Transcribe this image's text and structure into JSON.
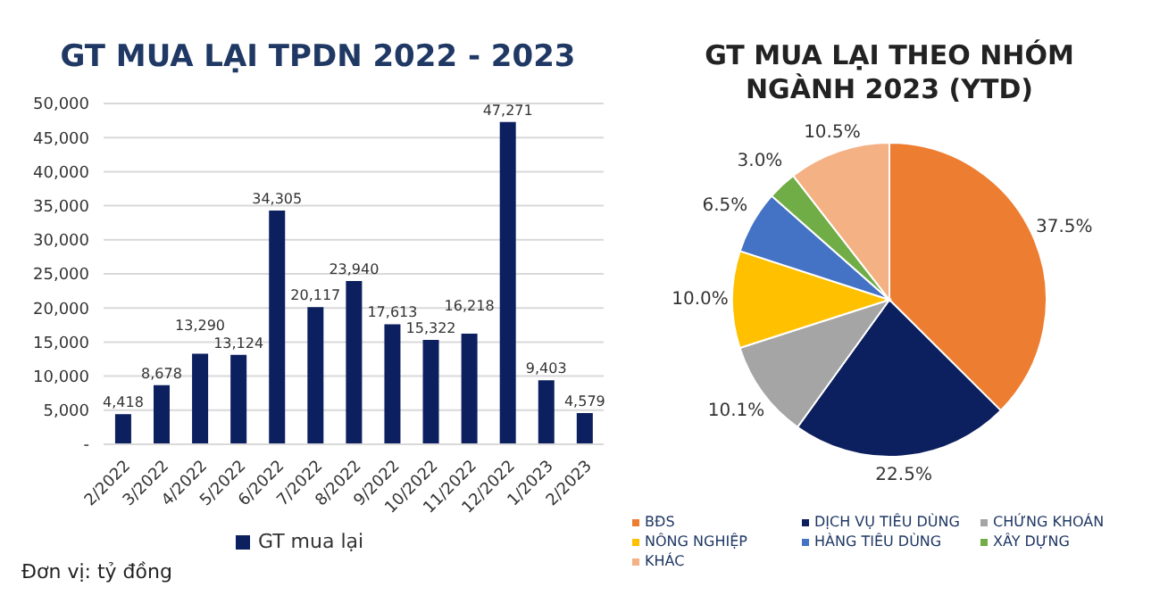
{
  "chart_data": [
    {
      "type": "bar",
      "title": "GT MUA LẠI TPDN 2022 - 2023",
      "categories": [
        "2/2022",
        "3/2022",
        "4/2022",
        "5/2022",
        "6/2022",
        "7/2022",
        "8/2022",
        "9/2022",
        "10/2022",
        "11/2022",
        "12/2022",
        "1/2023",
        "2/2023"
      ],
      "series": [
        {
          "name": "GT mua lại",
          "color": "#0c1f5e",
          "values": [
            4418,
            8678,
            13290,
            13124,
            34305,
            20117,
            23940,
            17613,
            15322,
            16218,
            47271,
            9403,
            4579
          ],
          "value_labels": [
            "4,418",
            "8,678",
            "13,290",
            "13,124",
            "34,305",
            "20,117",
            "23,940",
            "17,613",
            "15,322",
            "16,218",
            "47,271",
            "9,403",
            "4,579"
          ]
        }
      ],
      "ylim": [
        0,
        50000
      ],
      "yticks": [
        {
          "value": 0,
          "label": "-"
        },
        {
          "value": 5000,
          "label": "5,000"
        },
        {
          "value": 10000,
          "label": "10,000"
        },
        {
          "value": 15000,
          "label": "15,000"
        },
        {
          "value": 20000,
          "label": "20,000"
        },
        {
          "value": 25000,
          "label": "25,000"
        },
        {
          "value": 30000,
          "label": "30,000"
        },
        {
          "value": 35000,
          "label": "35,000"
        },
        {
          "value": 40000,
          "label": "40,000"
        },
        {
          "value": 45000,
          "label": "45,000"
        },
        {
          "value": 50000,
          "label": "50,000"
        }
      ],
      "grid": "y",
      "legend": "bottom",
      "annotations": [
        "Đơn vị: tỷ đồng"
      ]
    },
    {
      "type": "pie",
      "title": "GT MUA LẠI THEO NHÓM NGÀNH 2023 (YTD)",
      "categories": [
        "BĐS",
        "DỊCH VỤ TIÊU DÙNG",
        "CHỨNG KHOÁN",
        "NÔNG NGHIỆP",
        "HÀNG TIÊU DÙNG",
        "XÂY DỰNG",
        "KHÁC"
      ],
      "values": [
        37.5,
        22.5,
        10.1,
        10.0,
        6.5,
        3.0,
        10.5
      ],
      "value_labels": [
        "37.5%",
        "22.5%",
        "10.1%",
        "10.0%",
        "6.5%",
        "3.0%",
        "10.5%"
      ],
      "colors": [
        "#ed7d31",
        "#0c1f5e",
        "#a5a5a5",
        "#ffc000",
        "#4472c4",
        "#70ad47",
        "#f4b183"
      ],
      "legend": "bottom"
    }
  ]
}
